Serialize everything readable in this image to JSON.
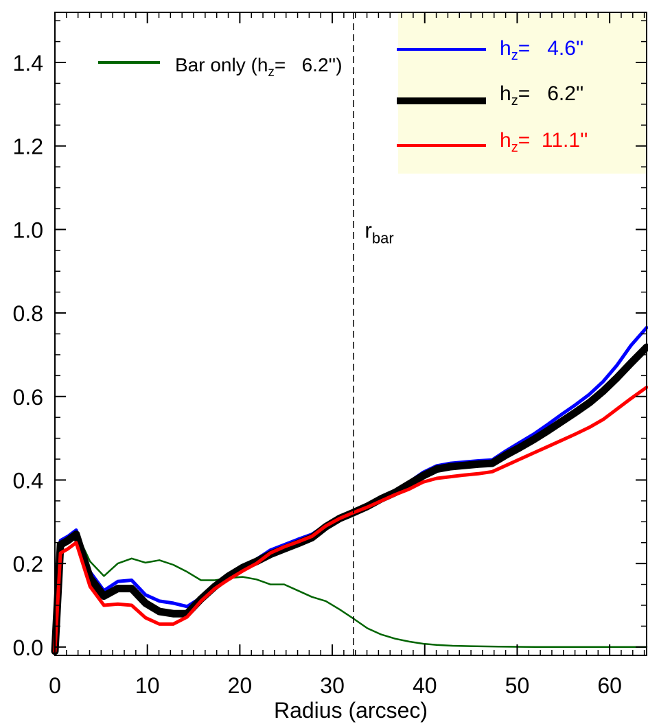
{
  "chart_data": {
    "type": "line",
    "xlabel": "Radius (arcsec)",
    "ylabel": "",
    "xlim": [
      0,
      64
    ],
    "ylim": [
      -0.02,
      1.52
    ],
    "x_ticks": [
      0,
      10,
      20,
      30,
      40,
      50,
      60
    ],
    "y_ticks": [
      0.0,
      0.2,
      0.4,
      0.6,
      0.8,
      1.0,
      1.2,
      1.4
    ],
    "x_tick_labels": [
      "0",
      "10",
      "20",
      "30",
      "40",
      "50",
      "60"
    ],
    "y_tick_labels": [
      "0.0",
      "0.2",
      "0.4",
      "0.6",
      "0.8",
      "1.0",
      "1.2",
      "1.4"
    ],
    "x_minor_step": 1.25,
    "y_minor_step": 0.05,
    "grid": false,
    "legend_left": {
      "position": "top-left",
      "entries": [
        {
          "color": "#006400",
          "text_main": "Bar only (h",
          "text_sub": "z",
          "text_rest": "=   6.2'')"
        }
      ]
    },
    "legend_right": {
      "position": "top-right",
      "background": "#fdfde0",
      "entries": [
        {
          "color": "#0000ff",
          "text_main": "h",
          "text_sub": "z",
          "text_rest": "=   4.6''"
        },
        {
          "color": "#000000",
          "text_main": "h",
          "text_sub": "z",
          "text_rest": "=   6.2''"
        },
        {
          "color": "#ff0000",
          "text_main": "h",
          "text_sub": "z",
          "text_rest": "=  11.1''"
        }
      ]
    },
    "annotation": {
      "x": 33.5,
      "y": 1.0,
      "main": "r",
      "sub": "bar"
    },
    "vline": {
      "x": 32.3,
      "style": "dashed"
    },
    "series": [
      {
        "color": "#006400",
        "x": [
          0,
          0.6,
          1.4,
          2.3,
          3.8,
          5.3,
          6.8,
          8.3,
          9.8,
          11.3,
          12.8,
          14.3,
          15.8,
          17.3,
          18.8,
          20.3,
          21.8,
          23.3,
          24.8,
          26.3,
          27.8,
          29.3,
          30.8,
          32.3,
          33.8,
          35.3,
          36.8,
          38.3,
          39.8,
          41.3,
          43,
          45,
          48,
          52,
          56,
          60,
          64
        ],
        "y": [
          -0.01,
          0.24,
          0.25,
          0.275,
          0.205,
          0.17,
          0.2,
          0.212,
          0.202,
          0.208,
          0.197,
          0.18,
          0.16,
          0.16,
          0.165,
          0.168,
          0.162,
          0.15,
          0.15,
          0.135,
          0.12,
          0.11,
          0.09,
          0.068,
          0.045,
          0.03,
          0.02,
          0.013,
          0.008,
          0.005,
          0.003,
          0.002,
          0.001,
          0,
          0,
          0,
          0
        ]
      },
      {
        "color": "#0000ff",
        "x": [
          0,
          0.6,
          1.4,
          2.3,
          3.8,
          5.3,
          6.8,
          8.3,
          9.8,
          11.3,
          12.8,
          14.3,
          15.8,
          17.3,
          18.8,
          20.3,
          21.8,
          23.3,
          24.8,
          26.3,
          27.8,
          29.3,
          30.8,
          32.3,
          33.8,
          35.3,
          36.8,
          38.3,
          39.8,
          41.3,
          42.8,
          44.3,
          45.8,
          47.3,
          48.8,
          50.3,
          51.8,
          53.3,
          54.8,
          56.3,
          57.8,
          59.3,
          60.8,
          62.3,
          64
        ],
        "y": [
          -0.01,
          0.255,
          0.265,
          0.28,
          0.18,
          0.135,
          0.157,
          0.16,
          0.125,
          0.11,
          0.105,
          0.097,
          0.118,
          0.15,
          0.172,
          0.195,
          0.21,
          0.232,
          0.245,
          0.258,
          0.27,
          0.292,
          0.31,
          0.325,
          0.34,
          0.36,
          0.375,
          0.395,
          0.418,
          0.434,
          0.44,
          0.443,
          0.446,
          0.448,
          0.47,
          0.49,
          0.51,
          0.533,
          0.557,
          0.58,
          0.605,
          0.636,
          0.675,
          0.722,
          0.765
        ]
      },
      {
        "color": "#000000",
        "x": [
          0,
          0.6,
          1.4,
          2.3,
          3.8,
          5.3,
          6.8,
          8.3,
          9.8,
          11.3,
          12.8,
          14.3,
          15.8,
          17.3,
          18.8,
          20.3,
          21.8,
          23.3,
          24.8,
          26.3,
          27.8,
          29.3,
          30.8,
          32.3,
          33.8,
          35.3,
          36.8,
          38.3,
          39.8,
          41.3,
          42.8,
          44.3,
          45.8,
          47.3,
          48.8,
          50.3,
          51.8,
          53.3,
          54.8,
          56.3,
          57.8,
          59.3,
          60.8,
          62.3,
          64
        ],
        "y": [
          -0.01,
          0.245,
          0.255,
          0.27,
          0.165,
          0.122,
          0.14,
          0.14,
          0.105,
          0.085,
          0.08,
          0.08,
          0.115,
          0.145,
          0.17,
          0.19,
          0.205,
          0.222,
          0.235,
          0.248,
          0.262,
          0.288,
          0.308,
          0.322,
          0.337,
          0.355,
          0.37,
          0.39,
          0.41,
          0.426,
          0.432,
          0.435,
          0.438,
          0.44,
          0.46,
          0.478,
          0.497,
          0.518,
          0.54,
          0.562,
          0.585,
          0.613,
          0.645,
          0.68,
          0.718
        ]
      },
      {
        "color": "#ff0000",
        "x": [
          0,
          0.6,
          1.4,
          2.3,
          3.8,
          5.3,
          6.8,
          8.3,
          9.8,
          11.3,
          12.8,
          14.3,
          15.8,
          17.3,
          18.8,
          20.3,
          21.8,
          23.3,
          24.8,
          26.3,
          27.8,
          29.3,
          30.8,
          32.3,
          33.8,
          35.3,
          36.8,
          38.3,
          39.8,
          41.3,
          42.8,
          44.3,
          45.8,
          47.3,
          48.8,
          50.3,
          51.8,
          53.3,
          54.8,
          56.3,
          57.8,
          59.3,
          60.8,
          62.3,
          64
        ],
        "y": [
          -0.01,
          0.225,
          0.235,
          0.25,
          0.145,
          0.1,
          0.103,
          0.1,
          0.07,
          0.055,
          0.055,
          0.072,
          0.11,
          0.14,
          0.162,
          0.182,
          0.2,
          0.225,
          0.24,
          0.252,
          0.265,
          0.29,
          0.308,
          0.322,
          0.335,
          0.35,
          0.365,
          0.378,
          0.395,
          0.404,
          0.408,
          0.412,
          0.415,
          0.42,
          0.435,
          0.45,
          0.465,
          0.48,
          0.495,
          0.51,
          0.526,
          0.545,
          0.57,
          0.595,
          0.622
        ]
      }
    ]
  }
}
